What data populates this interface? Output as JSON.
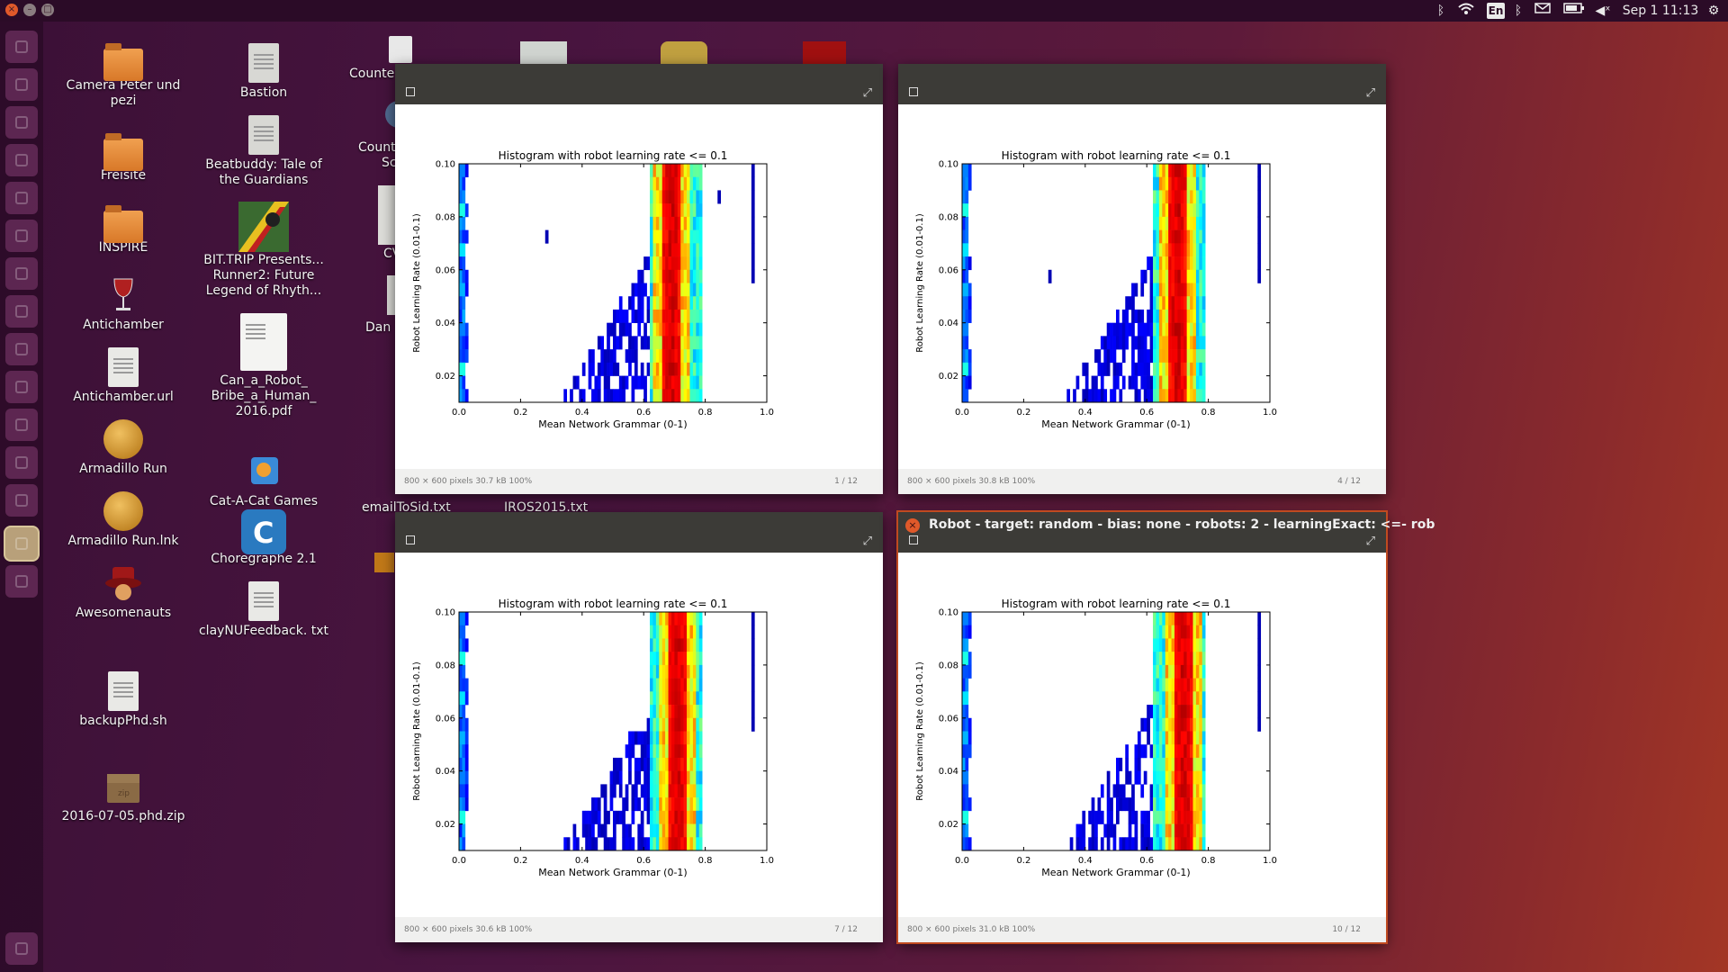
{
  "top_panel": {
    "language": "En",
    "clock": "Sep  1 11:13",
    "indicators": [
      "bluetooth-icon",
      "wifi-icon",
      "language-indicator",
      "bluetooth-icon",
      "mail-icon",
      "battery-icon",
      "volume-icon",
      "gear-icon"
    ]
  },
  "desktop_icons": [
    {
      "label": "Camera Peter und pezi",
      "kind": "folder"
    },
    {
      "label": "Freisite",
      "kind": "folder"
    },
    {
      "label": "INSPIRE",
      "kind": "folder"
    },
    {
      "label": "Antichamber",
      "kind": "app"
    },
    {
      "label": "Antichamber.url",
      "kind": "doc"
    },
    {
      "label": "Armadillo Run",
      "kind": "app"
    },
    {
      "label": "Armadillo Run.lnk",
      "kind": "app"
    },
    {
      "label": "Awesomenauts",
      "kind": "app"
    },
    {
      "label": "backupPhd.sh",
      "kind": "doc"
    },
    {
      "label": "2016-07-05.phd.zip",
      "kind": "zip"
    },
    {
      "label": "Bastion",
      "kind": "doc"
    },
    {
      "label": "Beatbuddy: Tale of the Guardians",
      "kind": "doc"
    },
    {
      "label": "BIT.TRIP Presents... Runner2: Future Legend of Rhyth...",
      "kind": "app"
    },
    {
      "label": "Can_a_Robot_ Bribe_a_Human_ 2016.pdf",
      "kind": "pdf"
    },
    {
      "label": "Cat-A-Cat Games",
      "kind": "app"
    },
    {
      "label": "Choregraphe 2.1",
      "kind": "app"
    },
    {
      "label": "clayNUFeedback. txt",
      "kind": "doc"
    }
  ],
  "partial_icons": [
    "Counte",
    "Count",
    "Sc",
    "CV",
    "Dan",
    "emailToSid.txt",
    "IROS2015.txt"
  ],
  "windows": [
    {
      "title": "",
      "status": "800 × 600 pixels  30.7 kB   100%",
      "page": "1 / 12"
    },
    {
      "title": "",
      "status": "800 × 600 pixels  30.8 kB   100%",
      "page": "4 / 12"
    },
    {
      "title": "",
      "status": "800 × 600 pixels  30.6 kB   100%",
      "page": "7 / 12"
    },
    {
      "title": "Robot - target: random - bias: none - robots: 2 - learningExact: <=- rob",
      "status": "800 × 600 pixels  31.0 kB   100%",
      "page": "10 / 12"
    }
  ],
  "chart_data": [
    {
      "type": "heatmap",
      "title": "Histogram with robot learning rate <= 0.1",
      "xlabel": "Mean Network Grammar (0-1)",
      "ylabel": "Robot Learning Rate (0.01-0.1)",
      "xlim": [
        0.0,
        1.0
      ],
      "ylim": [
        0.01,
        0.1
      ],
      "xticks": [
        "0.0",
        "0.2",
        "0.4",
        "0.6",
        "0.8",
        "1.0"
      ],
      "yticks": [
        "0.02",
        "0.04",
        "0.06",
        "0.08",
        "0.10"
      ],
      "colormap": "jet",
      "page": "1 / 12"
    },
    {
      "type": "heatmap",
      "title": "Histogram with robot learning rate <= 0.1",
      "xlabel": "Mean Network Grammar (0-1)",
      "ylabel": "Robot Learning Rate (0.01-0.1)",
      "xlim": [
        0.0,
        1.0
      ],
      "ylim": [
        0.01,
        0.1
      ],
      "xticks": [
        "0.0",
        "0.2",
        "0.4",
        "0.6",
        "0.8",
        "1.0"
      ],
      "yticks": [
        "0.02",
        "0.04",
        "0.06",
        "0.08",
        "0.10"
      ],
      "colormap": "jet",
      "page": "4 / 12"
    },
    {
      "type": "heatmap",
      "title": "Histogram with robot learning rate <= 0.1",
      "xlabel": "Mean Network Grammar (0-1)",
      "ylabel": "Robot Learning Rate (0.01-0.1)",
      "xlim": [
        0.0,
        1.0
      ],
      "ylim": [
        0.01,
        0.1
      ],
      "xticks": [
        "0.0",
        "0.2",
        "0.4",
        "0.6",
        "0.8",
        "1.0"
      ],
      "yticks": [
        "0.02",
        "0.04",
        "0.06",
        "0.08",
        "0.10"
      ],
      "colormap": "jet",
      "page": "7 / 12"
    },
    {
      "type": "heatmap",
      "title": "Histogram with robot learning rate <= 0.1",
      "xlabel": "Mean Network Grammar (0-1)",
      "ylabel": "Robot Learning Rate (0.01-0.1)",
      "xlim": [
        0.0,
        1.0
      ],
      "ylim": [
        0.01,
        0.1
      ],
      "xticks": [
        "0.0",
        "0.2",
        "0.4",
        "0.6",
        "0.8",
        "1.0"
      ],
      "yticks": [
        "0.02",
        "0.04",
        "0.06",
        "0.08",
        "0.10"
      ],
      "colormap": "jet",
      "page": "10 / 12"
    }
  ],
  "colors": {
    "accent": "#e0592a",
    "panel": "#2b0b27",
    "titlebar": "#3c3b37"
  }
}
